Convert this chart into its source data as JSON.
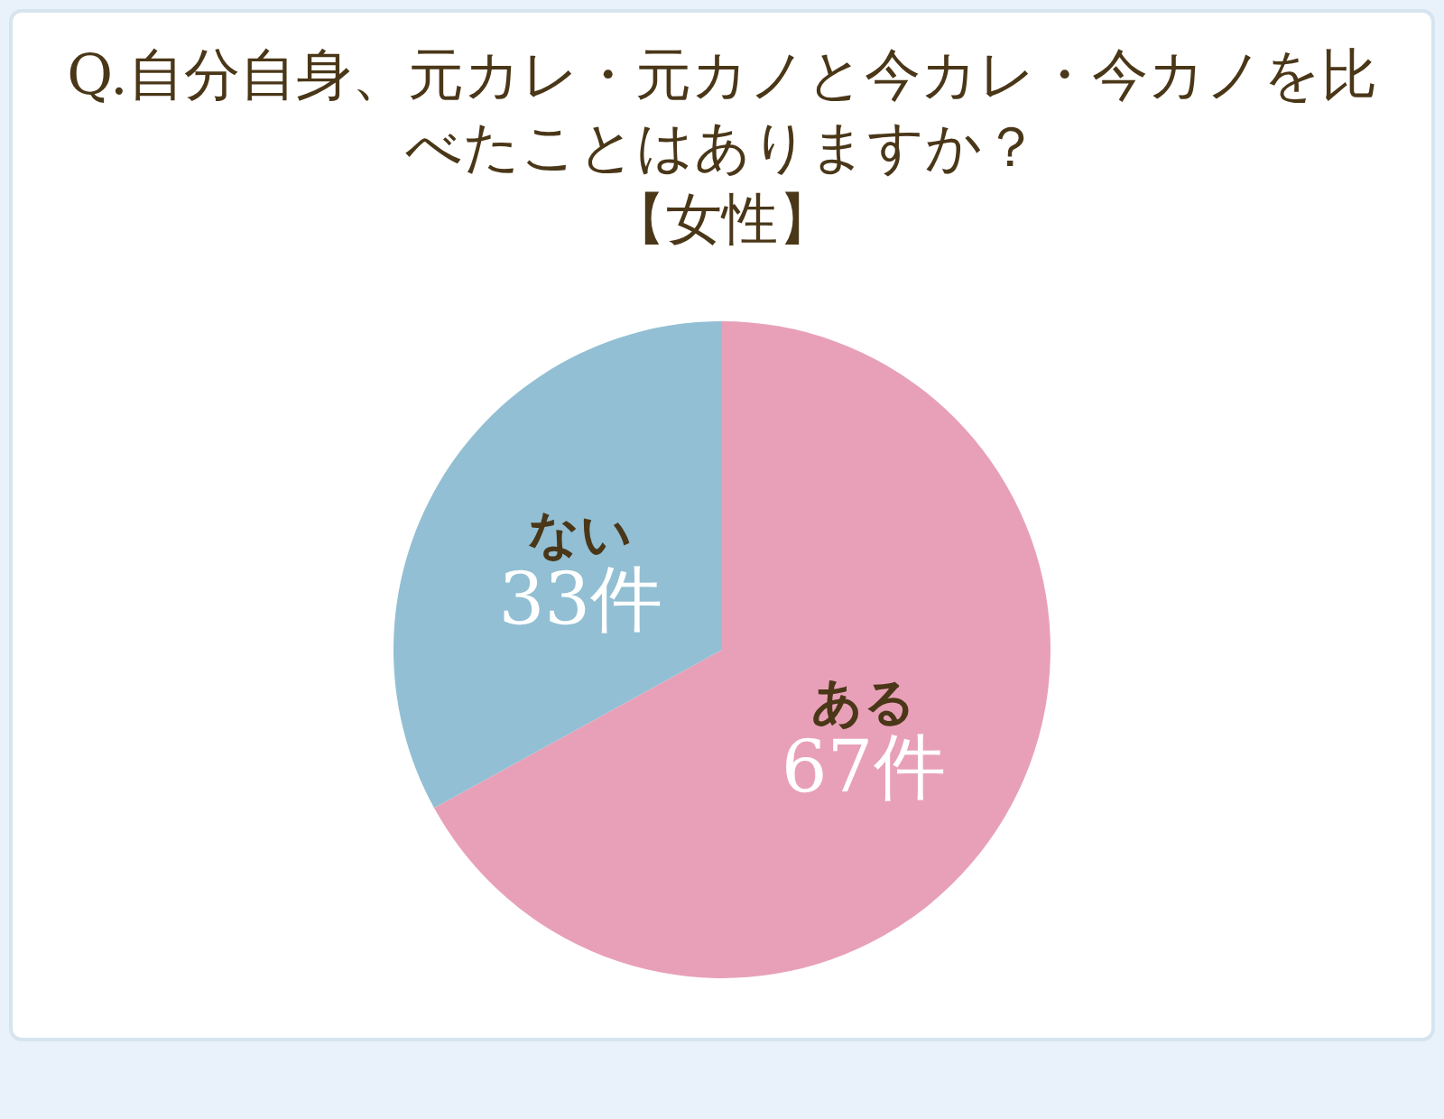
{
  "chart_data": {
    "type": "pie",
    "title": "Q.自分自身、元カレ・元カノと今カレ・今カノを比べたことはありますか？",
    "subtitle": "【女性】",
    "categories": [
      "ある",
      "ない"
    ],
    "values": [
      67,
      33
    ],
    "value_labels": [
      "67件",
      "33件"
    ],
    "colors": [
      "#e8a0b8",
      "#92bfd3"
    ],
    "legend": false
  }
}
